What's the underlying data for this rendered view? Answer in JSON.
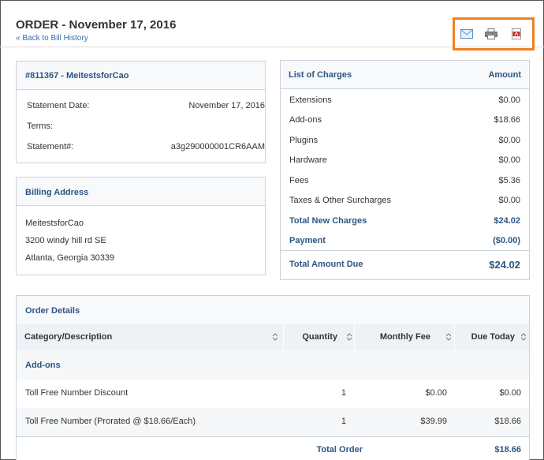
{
  "header": {
    "title": "ORDER - November 17, 2016",
    "back_link": "« Back to Bill History",
    "icons": [
      "mail-icon",
      "print-icon",
      "pdf-icon"
    ],
    "highlight_color": "#f08122"
  },
  "statement": {
    "heading": "#811367 - MeitestsforCao",
    "rows": [
      {
        "label": "Statement Date:",
        "value": "November 17, 2016"
      },
      {
        "label": "Terms:",
        "value": ""
      },
      {
        "label": "Statement#:",
        "value": "a3g290000001CR6AAM"
      }
    ]
  },
  "billing": {
    "heading": "Billing Address",
    "lines": [
      "MeitestsforCao",
      "3200 windy hill rd SE",
      "Atlanta, Georgia 30339"
    ]
  },
  "charges": {
    "heading": "List of Charges",
    "amount_heading": "Amount",
    "rows": [
      {
        "label": "Extensions",
        "value": "$0.00"
      },
      {
        "label": "Add-ons",
        "value": "$18.66"
      },
      {
        "label": "Plugins",
        "value": "$0.00"
      },
      {
        "label": "Hardware",
        "value": "$0.00"
      },
      {
        "label": "Fees",
        "value": "$5.36"
      },
      {
        "label": "Taxes & Other Surcharges",
        "value": "$0.00"
      }
    ],
    "total_new_label": "Total New Charges",
    "total_new_value": "$24.02",
    "payment_label": "Payment",
    "payment_value": "($0.00)",
    "total_due_label": "Total Amount Due",
    "total_due_value": "$24.02"
  },
  "order_details": {
    "heading": "Order Details",
    "columns": [
      "Category/Description",
      "Quantity",
      "Monthly Fee",
      "Due Today"
    ],
    "group": "Add-ons",
    "items": [
      {
        "desc": "Toll Free Number Discount",
        "qty": "1",
        "fee": "$0.00",
        "due": "$0.00"
      },
      {
        "desc": "Toll Free Number (Prorated @ $18.66/Each)",
        "qty": "1",
        "fee": "$39.99",
        "due": "$18.66"
      }
    ],
    "total_label": "Total Order",
    "total_value": "$18.66"
  }
}
